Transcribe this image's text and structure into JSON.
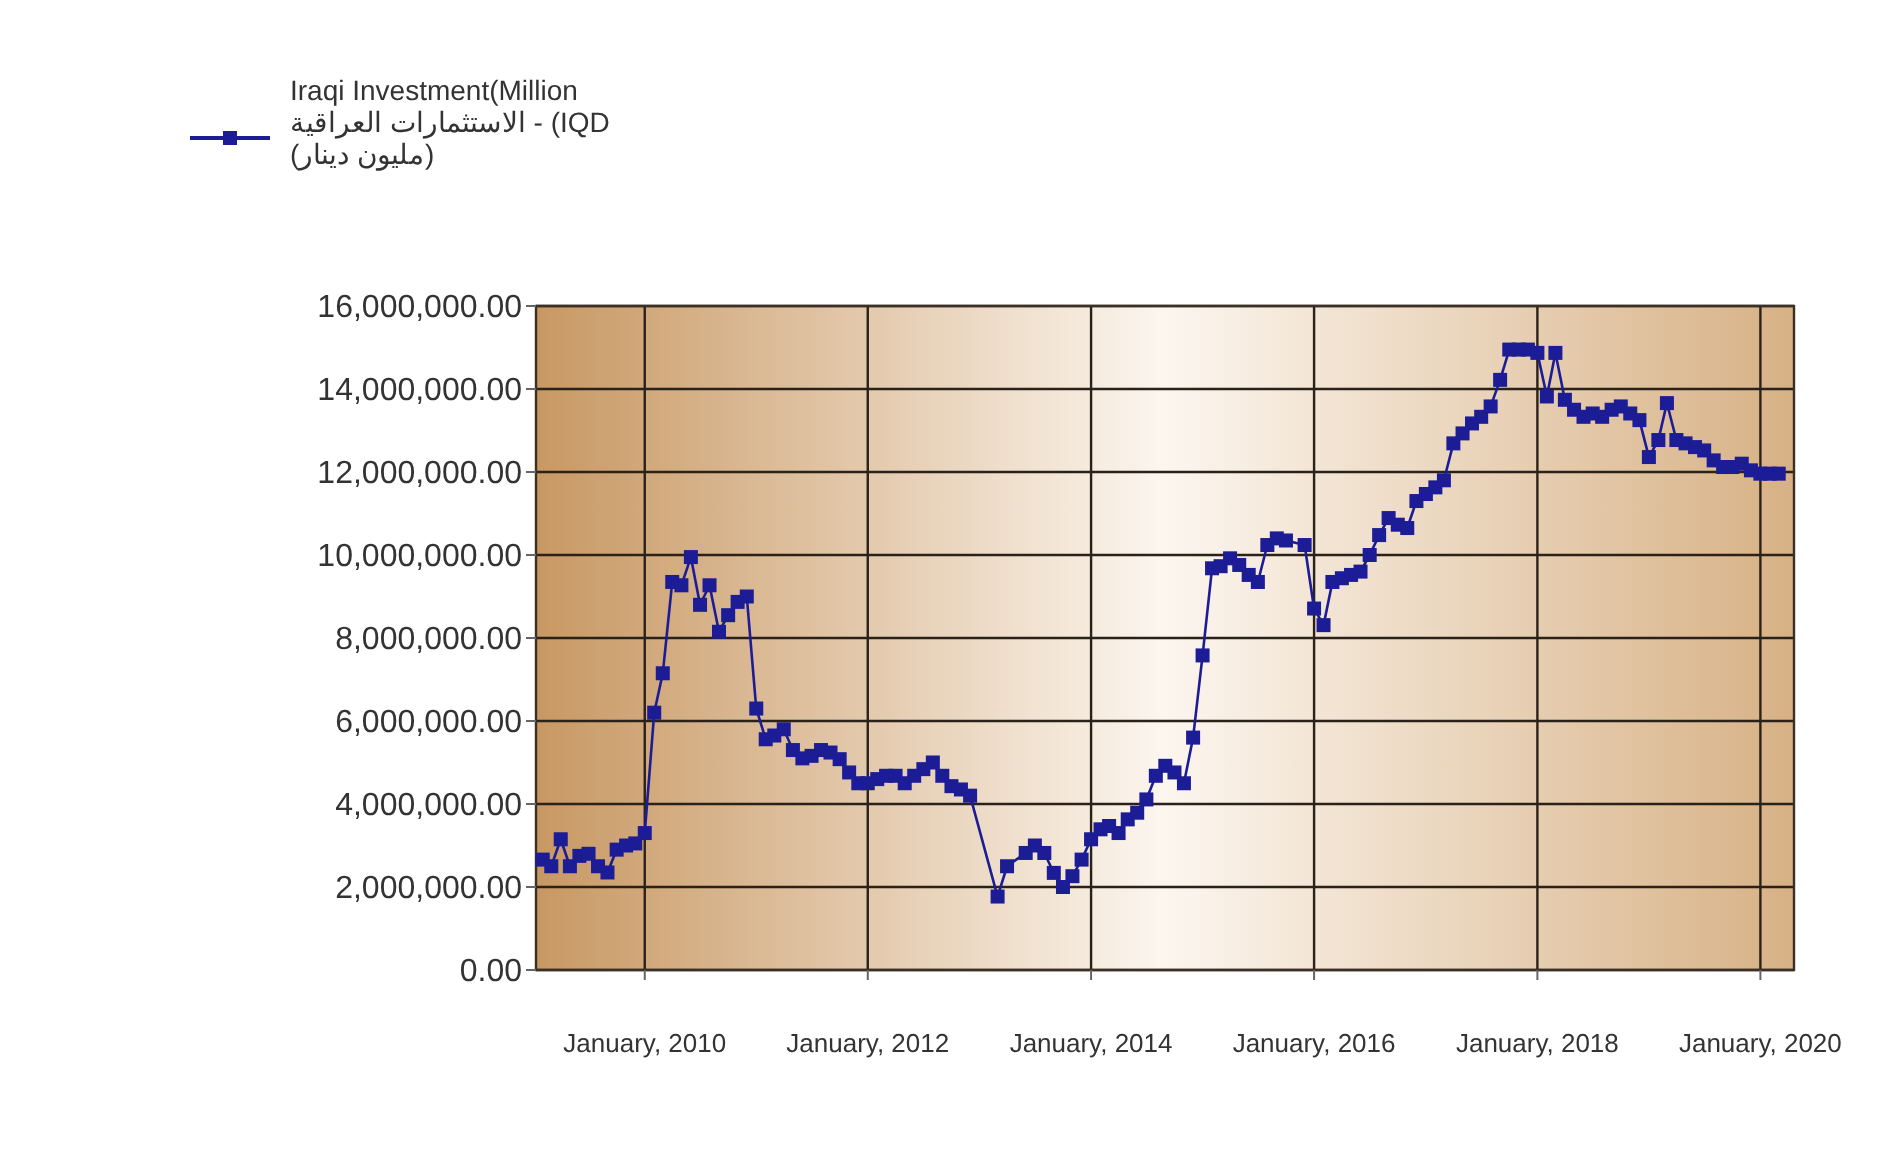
{
  "chart_data": {
    "type": "line",
    "legend": "top left",
    "grid": true,
    "marker": "square",
    "line_style": "solid",
    "xlim": [
      "2009-01-10",
      "2020-04-20"
    ],
    "xticks": [
      {
        "value": "2010-01-01",
        "label": "January, 2010"
      },
      {
        "value": "2012-01-01",
        "label": "January, 2012"
      },
      {
        "value": "2014-01-01",
        "label": "January, 2014"
      },
      {
        "value": "2016-01-01",
        "label": "January, 2016"
      },
      {
        "value": "2018-01-01",
        "label": "January, 2018"
      },
      {
        "value": "2020-01-01",
        "label": "January, 2020"
      }
    ],
    "ylim": [
      0,
      16000000
    ],
    "yticks": [
      {
        "value": 0,
        "label": "0.00"
      },
      {
        "value": 2000000,
        "label": "2,000,000.00"
      },
      {
        "value": 4000000,
        "label": "4,000,000.00"
      },
      {
        "value": 6000000,
        "label": "6,000,000.00"
      },
      {
        "value": 8000000,
        "label": "8,000,000.00"
      },
      {
        "value": 10000000,
        "label": "10,000,000.00"
      },
      {
        "value": 12000000,
        "label": "12,000,000.00"
      },
      {
        "value": 14000000,
        "label": "14,000,000.00"
      },
      {
        "value": 16000000,
        "label": "16,000,000.00"
      }
    ],
    "x": [
      "2009-02",
      "2009-03",
      "2009-04",
      "2009-05",
      "2009-06",
      "2009-07",
      "2009-08",
      "2009-09",
      "2009-10",
      "2009-11",
      "2009-12",
      "2010-01",
      "2010-02",
      "2010-03",
      "2010-04",
      "2010-05",
      "2010-06",
      "2010-07",
      "2010-08",
      "2010-09",
      "2010-10",
      "2010-11",
      "2010-12",
      "2011-01",
      "2011-02",
      "2011-03",
      "2011-04",
      "2011-05",
      "2011-06",
      "2011-07",
      "2011-08",
      "2011-09",
      "2011-10",
      "2011-11",
      "2011-12",
      "2012-01",
      "2012-02",
      "2012-03",
      "2012-04",
      "2012-05",
      "2012-06",
      "2012-07",
      "2012-08",
      "2012-09",
      "2012-10",
      "2012-11",
      "2012-12",
      "2013-03",
      "2013-04",
      "2013-06",
      "2013-07",
      "2013-08",
      "2013-09",
      "2013-10",
      "2013-11",
      "2013-12",
      "2014-01",
      "2014-02",
      "2014-03",
      "2014-04",
      "2014-05",
      "2014-06",
      "2014-07",
      "2014-08",
      "2014-09",
      "2014-10",
      "2014-11",
      "2014-12",
      "2015-01",
      "2015-02",
      "2015-03",
      "2015-04",
      "2015-05",
      "2015-06",
      "2015-07",
      "2015-08",
      "2015-09",
      "2015-10",
      "2015-12",
      "2016-01",
      "2016-02",
      "2016-03",
      "2016-04",
      "2016-05",
      "2016-06",
      "2016-07",
      "2016-08",
      "2016-09",
      "2016-10",
      "2016-11",
      "2016-12",
      "2017-01",
      "2017-02",
      "2017-03",
      "2017-04",
      "2017-05",
      "2017-06",
      "2017-07",
      "2017-08",
      "2017-09",
      "2017-10",
      "2017-11",
      "2017-12",
      "2018-01",
      "2018-02",
      "2018-03",
      "2018-04",
      "2018-05",
      "2018-06",
      "2018-07",
      "2018-08",
      "2018-09",
      "2018-10",
      "2018-11",
      "2018-12",
      "2019-01",
      "2019-02",
      "2019-03",
      "2019-04",
      "2019-05",
      "2019-06",
      "2019-07",
      "2019-08",
      "2019-09",
      "2019-10",
      "2019-11",
      "2019-12",
      "2020-01",
      "2020-02",
      "2020-03"
    ],
    "series": [
      {
        "name": "Iraqi Investment(Million IQD) - الاستثمارات العراقية (مليون دينار)",
        "color": "#1c1c96",
        "values": [
          2660000,
          2500000,
          3150000,
          2500000,
          2750000,
          2800000,
          2500000,
          2350000,
          2900000,
          3000000,
          3050000,
          3300000,
          6200000,
          7150000,
          9350000,
          9270000,
          9950000,
          8800000,
          9270000,
          8150000,
          8550000,
          8870000,
          9000000,
          6300000,
          5560000,
          5650000,
          5800000,
          5300000,
          5100000,
          5160000,
          5300000,
          5240000,
          5080000,
          4760000,
          4500000,
          4500000,
          4600000,
          4680000,
          4680000,
          4500000,
          4680000,
          4840000,
          5000000,
          4680000,
          4430000,
          4350000,
          4200000,
          1770000,
          2500000,
          2820000,
          3000000,
          2820000,
          2340000,
          2000000,
          2260000,
          2660000,
          3150000,
          3390000,
          3470000,
          3300000,
          3630000,
          3790000,
          4110000,
          4680000,
          4920000,
          4760000,
          4500000,
          5600000,
          7580000,
          9680000,
          9730000,
          9920000,
          9760000,
          9520000,
          9350000,
          10240000,
          10400000,
          10350000,
          10240000,
          8710000,
          8310000,
          9350000,
          9440000,
          9520000,
          9600000,
          10000000,
          10480000,
          10890000,
          10730000,
          10650000,
          11300000,
          11470000,
          11630000,
          11800000,
          12690000,
          12930000,
          13170000,
          13330000,
          13580000,
          14220000,
          14950000,
          14950000,
          14950000,
          14870000,
          13820000,
          14870000,
          13740000,
          13500000,
          13330000,
          13410000,
          13330000,
          13500000,
          13580000,
          13410000,
          13250000,
          12360000,
          12770000,
          13660000,
          12770000,
          12690000,
          12600000,
          12520000,
          12280000,
          12120000,
          12120000,
          12200000,
          12040000,
          11960000,
          11960000,
          11960000
        ]
      }
    ]
  }
}
